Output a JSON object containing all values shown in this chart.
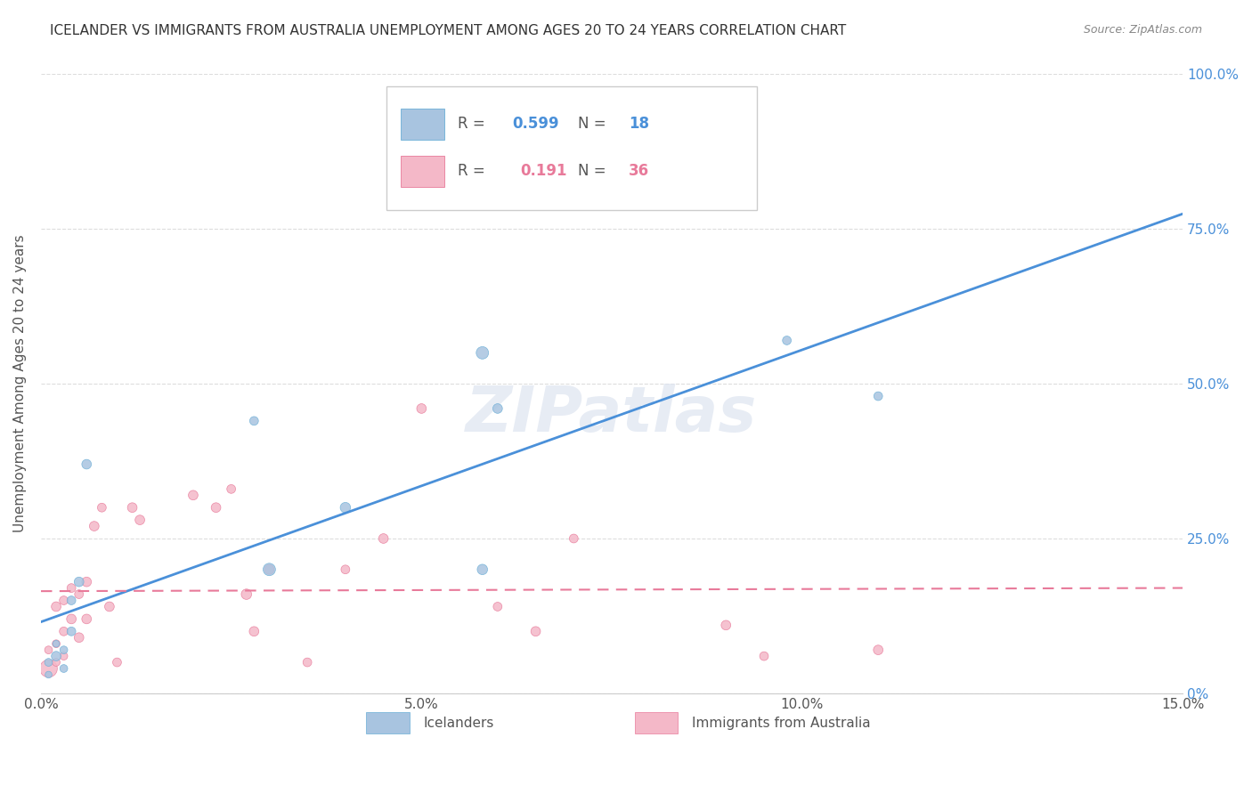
{
  "title": "ICELANDER VS IMMIGRANTS FROM AUSTRALIA UNEMPLOYMENT AMONG AGES 20 TO 24 YEARS CORRELATION CHART",
  "source": "Source: ZipAtlas.com",
  "ylabel": "Unemployment Among Ages 20 to 24 years",
  "xlim": [
    0.0,
    0.15
  ],
  "ylim": [
    0.0,
    1.0
  ],
  "xticks": [
    0.0,
    0.05,
    0.1,
    0.15
  ],
  "xtick_labels": [
    "0.0%",
    "5.0%",
    "10.0%",
    "15.0%"
  ],
  "ytick_labels": [
    "0%",
    "25.0%",
    "50.0%",
    "75.0%",
    "100.0%"
  ],
  "yticks": [
    0.0,
    0.25,
    0.5,
    0.75,
    1.0
  ],
  "background_color": "#ffffff",
  "grid_color": "#dddddd",
  "icelanders_color": "#a8c4e0",
  "icelanders_edge_color": "#6aaed6",
  "immigrants_color": "#f4b8c8",
  "immigrants_edge_color": "#e87a9a",
  "trendline_icelanders_color": "#4a90d9",
  "trendline_immigrants_color": "#e87a9a",
  "R_icelanders": 0.599,
  "N_icelanders": 18,
  "R_immigrants": 0.191,
  "N_immigrants": 36,
  "legend_label_icelanders": "Icelanders",
  "legend_label_immigrants": "Immigrants from Australia",
  "watermark": "ZIPatlas",
  "icelanders_x": [
    0.001,
    0.001,
    0.002,
    0.002,
    0.003,
    0.003,
    0.004,
    0.004,
    0.005,
    0.006,
    0.028,
    0.03,
    0.04,
    0.058,
    0.058,
    0.06,
    0.098,
    0.11
  ],
  "icelanders_y": [
    0.03,
    0.05,
    0.06,
    0.08,
    0.04,
    0.07,
    0.1,
    0.15,
    0.18,
    0.37,
    0.44,
    0.2,
    0.3,
    0.2,
    0.55,
    0.46,
    0.57,
    0.48
  ],
  "icelanders_size": [
    30,
    40,
    60,
    30,
    40,
    40,
    50,
    50,
    60,
    60,
    50,
    100,
    70,
    70,
    100,
    60,
    50,
    50
  ],
  "immigrants_x": [
    0.001,
    0.001,
    0.002,
    0.002,
    0.002,
    0.003,
    0.003,
    0.003,
    0.004,
    0.004,
    0.005,
    0.005,
    0.006,
    0.006,
    0.007,
    0.008,
    0.009,
    0.01,
    0.012,
    0.013,
    0.02,
    0.023,
    0.025,
    0.027,
    0.028,
    0.03,
    0.035,
    0.04,
    0.045,
    0.05,
    0.06,
    0.065,
    0.07,
    0.09,
    0.095,
    0.11
  ],
  "immigrants_y": [
    0.04,
    0.07,
    0.05,
    0.08,
    0.14,
    0.06,
    0.1,
    0.15,
    0.12,
    0.17,
    0.09,
    0.16,
    0.12,
    0.18,
    0.27,
    0.3,
    0.14,
    0.05,
    0.3,
    0.28,
    0.32,
    0.3,
    0.33,
    0.16,
    0.1,
    0.2,
    0.05,
    0.2,
    0.25,
    0.46,
    0.14,
    0.1,
    0.25,
    0.11,
    0.06,
    0.07
  ],
  "immigrants_size": [
    200,
    40,
    40,
    40,
    60,
    40,
    50,
    50,
    60,
    50,
    60,
    50,
    60,
    60,
    60,
    50,
    60,
    50,
    60,
    60,
    60,
    60,
    50,
    70,
    60,
    60,
    50,
    50,
    60,
    60,
    50,
    60,
    50,
    60,
    50,
    60
  ]
}
